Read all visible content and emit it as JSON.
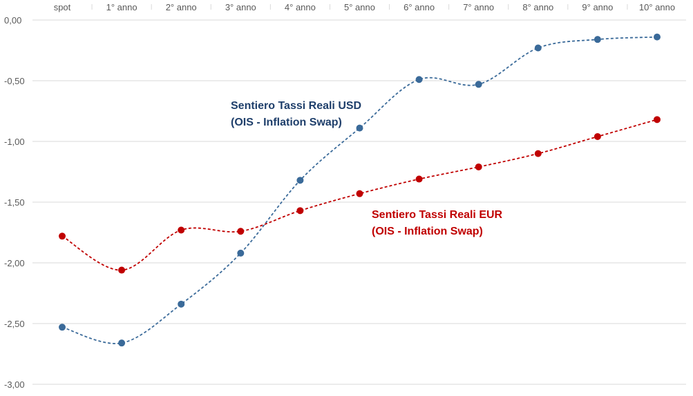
{
  "chart_data": {
    "type": "line",
    "categories": [
      "spot",
      "1° anno",
      "2° anno",
      "3° anno",
      "4° anno",
      "5° anno",
      "6° anno",
      "7° anno",
      "8° anno",
      "9° anno",
      "10° anno"
    ],
    "ylim": [
      -3.0,
      0.0
    ],
    "yticks": [
      "0,00",
      "-0,50",
      "-1,00",
      "-1,50",
      "-2,00",
      "-2,50",
      "-3,00"
    ],
    "ytick_values": [
      0.0,
      -0.5,
      -1.0,
      -1.5,
      -2.0,
      -2.5,
      -3.0
    ],
    "x_axis_position": "top",
    "grid": true,
    "line_style": "dashed",
    "smooth": true,
    "series": [
      {
        "key": "usd",
        "color": "#3a6a99",
        "values": [
          -2.53,
          -2.66,
          -2.34,
          -1.92,
          -1.32,
          -0.89,
          -0.49,
          -0.53,
          -0.23,
          -0.16,
          -0.14
        ]
      },
      {
        "key": "eur",
        "color": "#c00000",
        "values": [
          -1.78,
          -2.06,
          -1.73,
          -1.74,
          -1.57,
          -1.43,
          -1.31,
          -1.21,
          -1.1,
          -0.96,
          -0.82
        ]
      }
    ],
    "annotations": [
      {
        "key": "usd",
        "color": "#1f3f6b",
        "line1": "Sentiero Tassi Reali USD",
        "line2": "(OIS - Inflation Swap)"
      },
      {
        "key": "eur",
        "color": "#c00000",
        "line1": "Sentiero Tassi Reali EUR",
        "line2": "(OIS - Inflation Swap)"
      }
    ]
  }
}
